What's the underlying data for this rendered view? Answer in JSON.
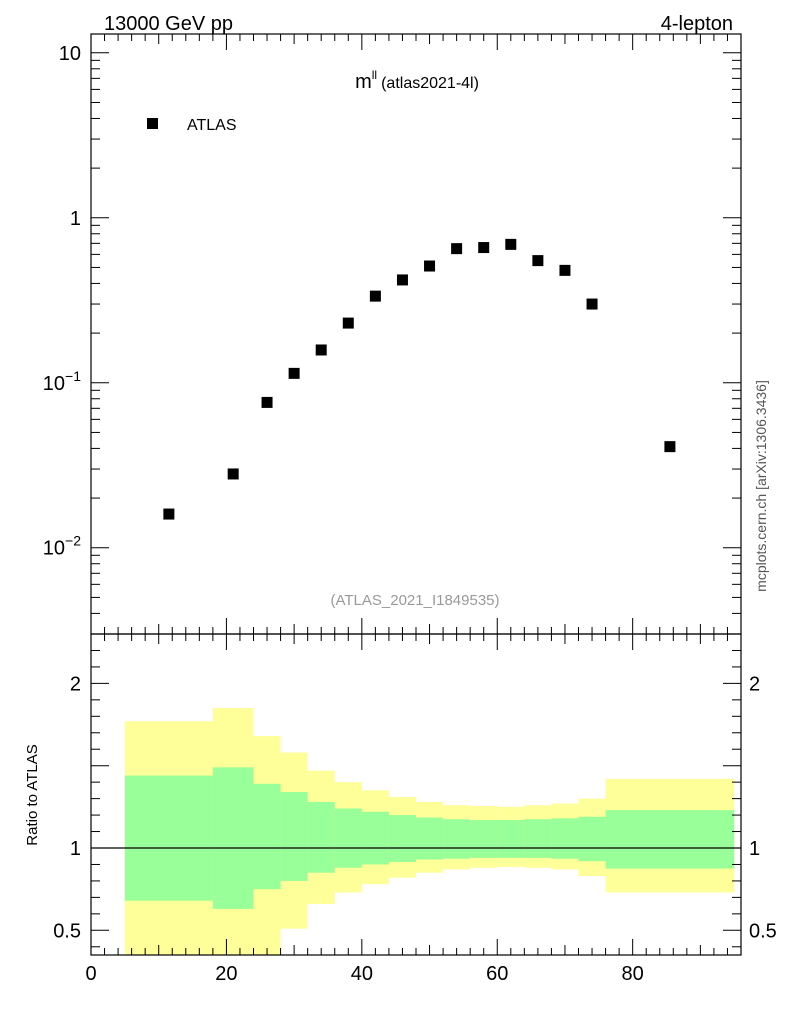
{
  "header": {
    "energy_label": "13000 GeV pp",
    "channel_label": "4-lepton"
  },
  "side_label": "mcplots.cern.ch [arXiv:1306.3436]",
  "chart_data": [
    {
      "type": "scatter",
      "title": "m",
      "title_sup": "ll",
      "title_suffix": "(atlas2021-4l)",
      "analysis_label": "(ATLAS_2021_I1849535)",
      "yscale": "log",
      "xlim": [
        0,
        96
      ],
      "ylim": [
        0.003,
        13
      ],
      "yticks": [
        {
          "value": 10,
          "label": "10"
        },
        {
          "value": 1,
          "label": "1"
        },
        {
          "value": 0.1,
          "label": "10",
          "sup": "−1"
        },
        {
          "value": 0.01,
          "label": "10",
          "sup": "−2"
        }
      ],
      "legend": {
        "position": "top-left",
        "entries": [
          "ATLAS"
        ]
      },
      "series": [
        {
          "name": "ATLAS",
          "marker": "square",
          "color": "#000000",
          "x": [
            11.5,
            21,
            26,
            30,
            34,
            38,
            42,
            46,
            50,
            54,
            58,
            62,
            66,
            70,
            74,
            85.5
          ],
          "y": [
            0.016,
            0.028,
            0.076,
            0.114,
            0.158,
            0.23,
            0.335,
            0.42,
            0.51,
            0.65,
            0.66,
            0.69,
            0.55,
            0.48,
            0.3,
            0.041
          ]
        }
      ]
    },
    {
      "type": "area",
      "ylabel": "Ratio to ATLAS",
      "xlim": [
        0,
        96
      ],
      "ylim": [
        0.35,
        2.3
      ],
      "xticks": [
        0,
        20,
        40,
        60,
        80
      ],
      "yticks": [
        {
          "value": 2,
          "label": "2"
        },
        {
          "value": 1,
          "label": "1"
        },
        {
          "value": 0.5,
          "label": "0.5"
        }
      ],
      "reference_line": 1,
      "bands": [
        {
          "name": "outer-uncertainty",
          "color": "#ffff99",
          "bins": [
            {
              "x0": 5,
              "x1": 18,
              "lo": 0.0,
              "hi": 1.77
            },
            {
              "x0": 18,
              "x1": 24,
              "lo": 0.0,
              "hi": 1.85
            },
            {
              "x0": 24,
              "x1": 28,
              "lo": 0.0,
              "hi": 1.68
            },
            {
              "x0": 28,
              "x1": 32,
              "lo": 0.51,
              "hi": 1.58
            },
            {
              "x0": 32,
              "x1": 36,
              "lo": 0.66,
              "hi": 1.47
            },
            {
              "x0": 36,
              "x1": 40,
              "lo": 0.73,
              "hi": 1.4
            },
            {
              "x0": 40,
              "x1": 44,
              "lo": 0.78,
              "hi": 1.35
            },
            {
              "x0": 44,
              "x1": 48,
              "lo": 0.82,
              "hi": 1.31
            },
            {
              "x0": 48,
              "x1": 52,
              "lo": 0.85,
              "hi": 1.28
            },
            {
              "x0": 52,
              "x1": 56,
              "lo": 0.87,
              "hi": 1.26
            },
            {
              "x0": 56,
              "x1": 60,
              "lo": 0.88,
              "hi": 1.255
            },
            {
              "x0": 60,
              "x1": 64,
              "lo": 0.885,
              "hi": 1.25
            },
            {
              "x0": 64,
              "x1": 68,
              "lo": 0.88,
              "hi": 1.26
            },
            {
              "x0": 68,
              "x1": 72,
              "lo": 0.87,
              "hi": 1.27
            },
            {
              "x0": 72,
              "x1": 76,
              "lo": 0.83,
              "hi": 1.3
            },
            {
              "x0": 76,
              "x1": 95,
              "lo": 0.73,
              "hi": 1.42
            }
          ]
        },
        {
          "name": "inner-uncertainty",
          "color": "#99ff99",
          "bins": [
            {
              "x0": 5,
              "x1": 18,
              "lo": 0.68,
              "hi": 1.44
            },
            {
              "x0": 18,
              "x1": 24,
              "lo": 0.63,
              "hi": 1.49
            },
            {
              "x0": 24,
              "x1": 28,
              "lo": 0.75,
              "hi": 1.39
            },
            {
              "x0": 28,
              "x1": 32,
              "lo": 0.8,
              "hi": 1.34
            },
            {
              "x0": 32,
              "x1": 36,
              "lo": 0.85,
              "hi": 1.28
            },
            {
              "x0": 36,
              "x1": 40,
              "lo": 0.88,
              "hi": 1.24
            },
            {
              "x0": 40,
              "x1": 44,
              "lo": 0.9,
              "hi": 1.22
            },
            {
              "x0": 44,
              "x1": 48,
              "lo": 0.915,
              "hi": 1.2
            },
            {
              "x0": 48,
              "x1": 52,
              "lo": 0.93,
              "hi": 1.185
            },
            {
              "x0": 52,
              "x1": 56,
              "lo": 0.935,
              "hi": 1.175
            },
            {
              "x0": 56,
              "x1": 60,
              "lo": 0.94,
              "hi": 1.17
            },
            {
              "x0": 60,
              "x1": 64,
              "lo": 0.94,
              "hi": 1.17
            },
            {
              "x0": 64,
              "x1": 68,
              "lo": 0.94,
              "hi": 1.175
            },
            {
              "x0": 68,
              "x1": 72,
              "lo": 0.935,
              "hi": 1.18
            },
            {
              "x0": 72,
              "x1": 76,
              "lo": 0.92,
              "hi": 1.19
            },
            {
              "x0": 76,
              "x1": 95,
              "lo": 0.875,
              "hi": 1.23
            }
          ]
        }
      ]
    }
  ]
}
